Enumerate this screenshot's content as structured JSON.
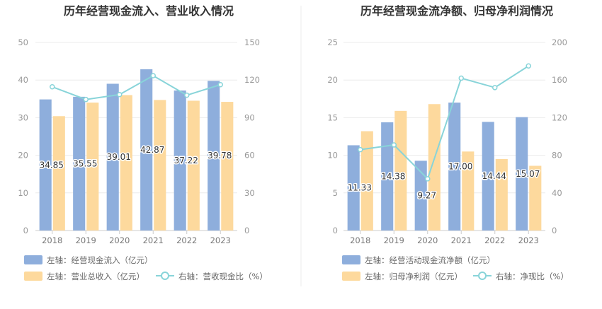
{
  "chart_data": [
    {
      "type": "bar+line",
      "title": "历年经营现金流入、营业收入情况",
      "categories": [
        "2018",
        "2019",
        "2020",
        "2021",
        "2022",
        "2023"
      ],
      "left_axis": {
        "ticks": [
          "0",
          "10",
          "20",
          "30",
          "40",
          "50"
        ],
        "ylim": [
          0,
          50
        ]
      },
      "right_axis": {
        "ticks": [
          "0",
          "30",
          "60",
          "90",
          "120",
          "150"
        ],
        "ylim": [
          0,
          150
        ]
      },
      "series": [
        {
          "name": "左轴：经营现金流入（亿元）",
          "kind": "bar",
          "axis": "left",
          "color": "#8eaedc",
          "values": [
            34.85,
            35.55,
            39.01,
            42.87,
            37.22,
            39.78
          ],
          "labels": [
            "34.85",
            "35.55",
            "39.01",
            "42.87",
            "37.22",
            "39.78"
          ]
        },
        {
          "name": "左轴：营业总收入（亿元）",
          "kind": "bar",
          "axis": "left",
          "color": "#fdd99d",
          "values": [
            30.4,
            34.0,
            36.0,
            34.7,
            34.5,
            34.2
          ]
        },
        {
          "name": "右轴：营收现金比（%）",
          "kind": "line",
          "axis": "right",
          "color": "#88d4d9",
          "values": [
            114.6,
            104.5,
            108.4,
            123.5,
            107.9,
            116.3
          ]
        }
      ]
    },
    {
      "type": "bar+line",
      "title": "历年经营现金流净额、归母净利润情况",
      "categories": [
        "2018",
        "2019",
        "2020",
        "2021",
        "2022",
        "2023"
      ],
      "left_axis": {
        "ticks": [
          "0",
          "5",
          "10",
          "15",
          "20",
          "25"
        ],
        "ylim": [
          0,
          25
        ]
      },
      "right_axis": {
        "ticks": [
          "0",
          "40",
          "80",
          "120",
          "160",
          "200"
        ],
        "ylim": [
          0,
          200
        ]
      },
      "series": [
        {
          "name": "左轴：经营活动现金流净额（亿元）",
          "kind": "bar",
          "axis": "left",
          "color": "#8eaedc",
          "values": [
            11.33,
            14.38,
            9.27,
            17.0,
            14.44,
            15.07
          ],
          "labels": [
            "11.33",
            "14.38",
            "9.27",
            "17.00",
            "14.44",
            "15.07"
          ]
        },
        {
          "name": "左轴：归母净利润（亿元）",
          "kind": "bar",
          "axis": "left",
          "color": "#fdd99d",
          "values": [
            13.2,
            15.9,
            16.8,
            10.5,
            9.5,
            8.6
          ]
        },
        {
          "name": "右轴：净现比（%）",
          "kind": "line",
          "axis": "right",
          "color": "#88d4d9",
          "values": [
            86,
            91,
            55,
            162,
            152,
            175
          ]
        }
      ]
    }
  ]
}
